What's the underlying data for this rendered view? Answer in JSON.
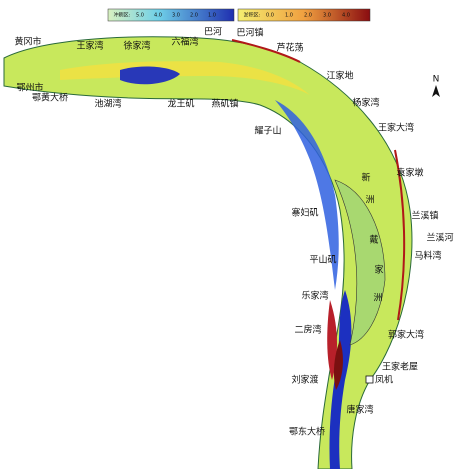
{
  "legend": {
    "erosion": {
      "title": "冲刷区:",
      "labels": [
        "5.0",
        "4.0",
        "3.0",
        "2.0",
        "1.0"
      ]
    },
    "deposition": {
      "title": "淤积区:",
      "labels": [
        "0.0",
        "1.0",
        "2.0",
        "3.0",
        "4.0"
      ]
    }
  },
  "north": "N",
  "places": [
    "黄冈市",
    "王家湾",
    "徐家湾",
    "六福湾",
    "巴河",
    "巴河镇",
    "芦花荡",
    "江家地",
    "杨家湾",
    "王家大湾",
    "袁家墩",
    "兰溪镇",
    "兰溪河",
    "马料湾",
    "寨妇矶",
    "平山矶",
    "乐家湾",
    "二房湾",
    "郭家大湾",
    "王家老屋",
    "凤机",
    "刘家渡",
    "唐家湾",
    "鄂东大桥",
    "鄂州市",
    "鄂黄大桥",
    "池湖湾",
    "龙王矶",
    "燕矶镇",
    "耀子山",
    "新",
    "洲",
    "戴",
    "家",
    "洲"
  ]
}
